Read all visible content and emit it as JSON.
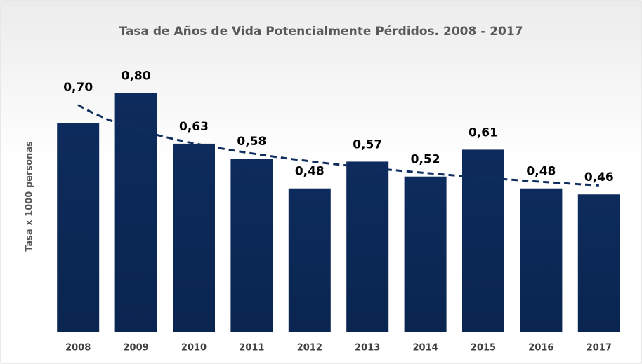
{
  "chart_data": {
    "type": "bar",
    "title": "Tasa de Años de Vida Potencialmente Pérdidos. 2008 - 2017",
    "y_label": "Tasa x 1000 personas",
    "categories": [
      "2008",
      "2009",
      "2010",
      "2011",
      "2012",
      "2013",
      "2014",
      "2015",
      "2016",
      "2017"
    ],
    "values": [
      0.7,
      0.8,
      0.63,
      0.58,
      0.48,
      0.57,
      0.52,
      0.61,
      0.48,
      0.46
    ],
    "value_labels": [
      "0,70",
      "0,80",
      "0,63",
      "0,58",
      "0,48",
      "0,57",
      "0,52",
      "0,61",
      "0,48",
      "0,46"
    ],
    "color": "#0b2a5a",
    "trendline": "logarithmic",
    "trendline_color": "#0f2d5e",
    "ylim": [
      0,
      0.9
    ]
  }
}
